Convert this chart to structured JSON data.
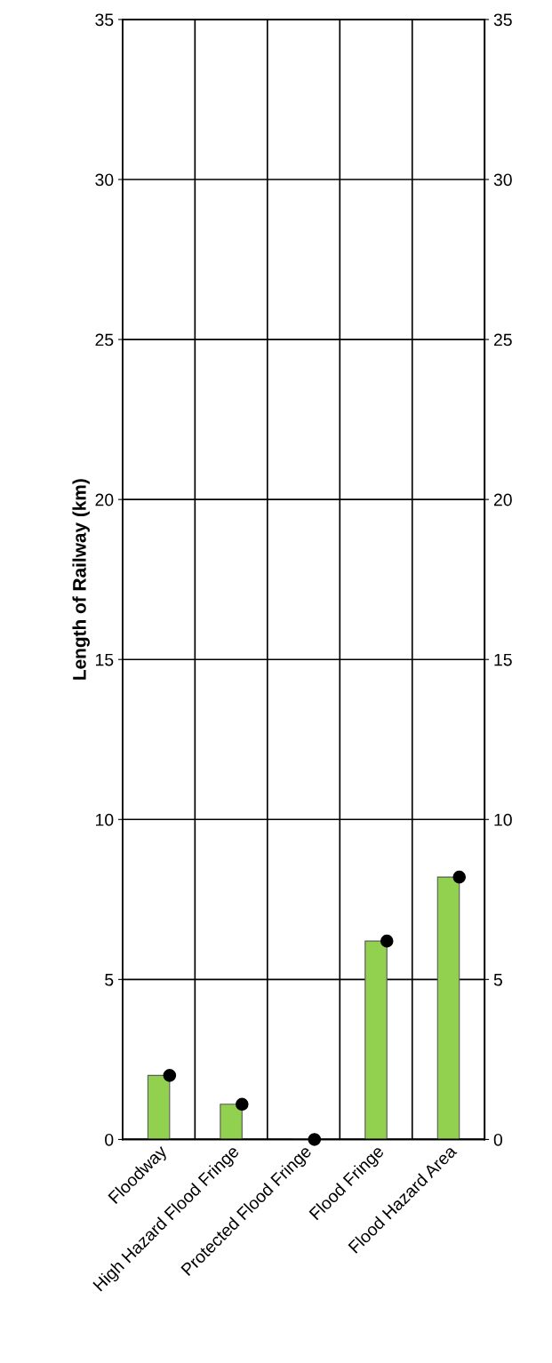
{
  "chart_data": {
    "type": "bar",
    "ylabel": "Length of Railway (km)",
    "categories": [
      "Floodway",
      "High Hazard Flood Fringe",
      "Protected Flood Fringe",
      "Flood Fringe",
      "Flood Hazard Area"
    ],
    "series": [
      {
        "color": "#92d050",
        "values": [
          2.0,
          1.1,
          0.0,
          6.2,
          8.2
        ]
      },
      {
        "type": "scatter",
        "color": "#000000",
        "marker": "circle",
        "values": [
          2.0,
          1.1,
          0.0,
          6.2,
          8.2
        ]
      }
    ],
    "ylim": [
      0,
      35
    ],
    "yticks": [
      0,
      5,
      10,
      15,
      20,
      25,
      30,
      35
    ],
    "y2lim": [
      0,
      35
    ],
    "y2ticks": [
      0,
      5,
      10,
      15,
      20,
      25,
      30,
      35
    ],
    "grid": true
  }
}
